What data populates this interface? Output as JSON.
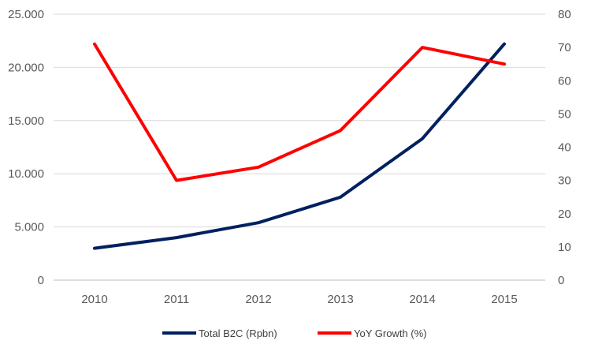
{
  "chart_data": {
    "type": "line",
    "categories": [
      "2010",
      "2011",
      "2012",
      "2013",
      "2014",
      "2015"
    ],
    "series": [
      {
        "name": "Total B2C (Rpbn)",
        "axis": "left",
        "color": "#002060",
        "values": [
          3000,
          4000,
          5400,
          7800,
          13300,
          22200
        ]
      },
      {
        "name": "YoY Growth (%)",
        "axis": "right",
        "color": "#ff0000",
        "values": [
          71,
          30,
          34,
          45,
          70,
          65
        ]
      }
    ],
    "y_left": {
      "ylim": [
        0,
        25000
      ],
      "ticks": [
        0,
        5000,
        10000,
        15000,
        20000,
        25000
      ],
      "tick_labels": [
        "0",
        "5.000",
        "10.000",
        "15.000",
        "20.000",
        "25.000"
      ]
    },
    "y_right": {
      "ylim": [
        0,
        80
      ],
      "ticks": [
        0,
        10,
        20,
        30,
        40,
        50,
        60,
        70,
        80
      ],
      "tick_labels": [
        "0",
        "10",
        "20",
        "30",
        "40",
        "50",
        "60",
        "70",
        "80"
      ]
    },
    "grid": true,
    "legend_position": "bottom"
  }
}
